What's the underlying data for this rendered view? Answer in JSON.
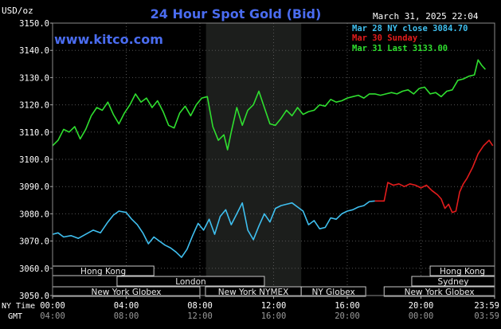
{
  "chart_data": {
    "type": "line",
    "title": "24 Hour Spot Gold (Bid)",
    "source": "www.kitco.com",
    "unit_label": "USD/oz",
    "timestamp": "March 31, 2025 22:04",
    "ylim": [
      3050,
      3150
    ],
    "yticks": [
      "3150.0",
      "3140.0",
      "3130.0",
      "3120.0",
      "3110.0",
      "3100.0",
      "3090.0",
      "3080.0",
      "3070.0",
      "3060.0",
      "3050.0"
    ],
    "x_ticks_ny": [
      "00:00",
      "04:00",
      "08:00",
      "12:00",
      "16:00",
      "20:00",
      "23:59"
    ],
    "x_ticks_gmt": [
      "04:00",
      "08:00",
      "12:00",
      "16:00",
      "20:00",
      "00:00",
      "03:59"
    ],
    "x_row_labels": {
      "ny": "NY Time",
      "gmt": "GMT"
    },
    "legend": [
      {
        "label": "Mar 28 NY close 3084.70",
        "color": "#3fbfef"
      },
      {
        "label": "Mar 30 Sunday",
        "color": "#e31c1c"
      },
      {
        "label": "Mar 31 Last 3133.00",
        "color": "#2fdf2f"
      }
    ],
    "highlight_hours": [
      8.33,
      13.5
    ],
    "market_sessions": [
      {
        "label": "Hong Kong",
        "row": 0,
        "start": 0,
        "end": 5.5
      },
      {
        "label": "Hong Kong",
        "row": 0,
        "start": 20.5,
        "end": 24
      },
      {
        "label": "London",
        "row": 1,
        "start": 3.5,
        "end": 11.5
      },
      {
        "label": "Sydney",
        "row": 1,
        "start": 19.5,
        "end": 24
      },
      {
        "label": "New York Globex",
        "row": 2,
        "start": 0,
        "end": 8
      },
      {
        "label": "New York NYMEX",
        "row": 2,
        "start": 8.3,
        "end": 13.5
      },
      {
        "label": "NY Globex",
        "row": 2,
        "start": 13.5,
        "end": 17
      },
      {
        "label": "New York Globex",
        "row": 2,
        "start": 18,
        "end": 24
      }
    ],
    "series": [
      {
        "name": "Mar 28 NY close 3084.70",
        "color": "#3fbfef",
        "x": [
          0,
          0.3,
          0.6,
          1.0,
          1.4,
          1.8,
          2.2,
          2.6,
          3.0,
          3.3,
          3.6,
          4.0,
          4.3,
          4.6,
          4.9,
          5.2,
          5.5,
          5.8,
          6.1,
          6.4,
          6.7,
          7.0,
          7.3,
          7.6,
          7.9,
          8.2,
          8.5,
          8.8,
          9.1,
          9.4,
          9.7,
          10.0,
          10.3,
          10.6,
          10.9,
          11.2,
          11.5,
          11.8,
          12.1,
          12.4,
          12.7,
          13.0,
          13.3,
          13.6,
          13.9,
          14.2,
          14.5,
          14.8,
          15.1,
          15.4,
          15.7,
          16.0,
          16.3,
          16.6,
          16.9,
          17.2,
          17.5
        ],
        "y": [
          3072.5,
          3073.0,
          3071.5,
          3072.0,
          3071.0,
          3072.5,
          3074.0,
          3073.0,
          3077.0,
          3079.5,
          3081.0,
          3080.5,
          3078.0,
          3076.0,
          3073.0,
          3069.0,
          3071.5,
          3070.0,
          3068.5,
          3067.5,
          3066.0,
          3064.0,
          3067.0,
          3072.0,
          3076.5,
          3074.0,
          3078.0,
          3072.5,
          3079.0,
          3081.5,
          3076.0,
          3080.0,
          3084.0,
          3074.0,
          3070.5,
          3075.5,
          3080.0,
          3077.0,
          3082.0,
          3083.0,
          3083.5,
          3084.0,
          3082.5,
          3081.0,
          3076.0,
          3077.5,
          3074.5,
          3075.0,
          3078.5,
          3078.0,
          3080.0,
          3081.0,
          3081.5,
          3082.5,
          3083.0,
          3084.5,
          3084.7
        ]
      },
      {
        "name": "Mar 30 Sunday",
        "color": "#e31c1c",
        "x": [
          17.5,
          18.0,
          18.2,
          18.5,
          18.8,
          19.1,
          19.4,
          19.7,
          20.0,
          20.3,
          20.6,
          20.9,
          21.1,
          21.3,
          21.5,
          21.7,
          21.9,
          22.1,
          22.3,
          22.5,
          22.8,
          23.1,
          23.4,
          23.7,
          23.9
        ],
        "y": [
          3084.7,
          3084.7,
          3091.5,
          3090.5,
          3091.0,
          3090.0,
          3091.0,
          3090.5,
          3089.5,
          3090.5,
          3088.5,
          3087.0,
          3085.5,
          3082.0,
          3083.5,
          3080.5,
          3081.0,
          3088.0,
          3091.0,
          3093.0,
          3097.0,
          3102.0,
          3105.0,
          3107.0,
          3105.0
        ]
      },
      {
        "name": "Mar 31 Last 3133.00",
        "color": "#2fdf2f",
        "x": [
          0,
          0.3,
          0.6,
          0.9,
          1.2,
          1.5,
          1.8,
          2.1,
          2.4,
          2.7,
          3.0,
          3.3,
          3.6,
          3.9,
          4.2,
          4.5,
          4.8,
          5.1,
          5.4,
          5.7,
          6.0,
          6.3,
          6.6,
          6.9,
          7.2,
          7.5,
          7.8,
          8.1,
          8.4,
          8.7,
          9.0,
          9.3,
          9.5,
          9.7,
          10.0,
          10.3,
          10.6,
          10.9,
          11.2,
          11.5,
          11.8,
          12.1,
          12.4,
          12.7,
          13.0,
          13.3,
          13.6,
          13.9,
          14.2,
          14.5,
          14.8,
          15.1,
          15.4,
          15.7,
          16.0,
          16.3,
          16.6,
          16.9,
          17.2,
          17.5,
          17.8,
          18.1,
          18.4,
          18.7,
          19.0,
          19.3,
          19.6,
          19.9,
          20.2,
          20.5,
          20.8,
          21.1,
          21.4,
          21.7,
          22.0,
          22.3,
          22.6,
          22.9,
          23.1,
          23.3,
          23.5
        ],
        "y": [
          3105.0,
          3107.0,
          3111.0,
          3110.0,
          3112.0,
          3107.5,
          3111.0,
          3116.0,
          3119.0,
          3118.0,
          3121.0,
          3116.5,
          3113.0,
          3117.0,
          3120.0,
          3124.0,
          3121.0,
          3122.5,
          3119.0,
          3121.5,
          3117.5,
          3112.5,
          3111.5,
          3117.0,
          3119.5,
          3116.0,
          3120.0,
          3122.5,
          3123.0,
          3112.0,
          3107.0,
          3109.0,
          3103.5,
          3110.0,
          3119.0,
          3112.5,
          3118.0,
          3120.0,
          3125.0,
          3119.0,
          3113.0,
          3112.5,
          3115.0,
          3118.0,
          3116.0,
          3119.0,
          3116.5,
          3117.5,
          3118.0,
          3120.0,
          3119.5,
          3122.0,
          3121.0,
          3121.5,
          3122.5,
          3123.0,
          3123.5,
          3122.5,
          3124.0,
          3124.0,
          3123.5,
          3124.0,
          3124.5,
          3124.0,
          3125.0,
          3125.5,
          3124.0,
          3126.0,
          3126.5,
          3124.0,
          3124.5,
          3123.0,
          3125.0,
          3125.5,
          3129.0,
          3129.5,
          3130.5,
          3131.0,
          3136.5,
          3134.5,
          3133.0
        ]
      }
    ]
  }
}
